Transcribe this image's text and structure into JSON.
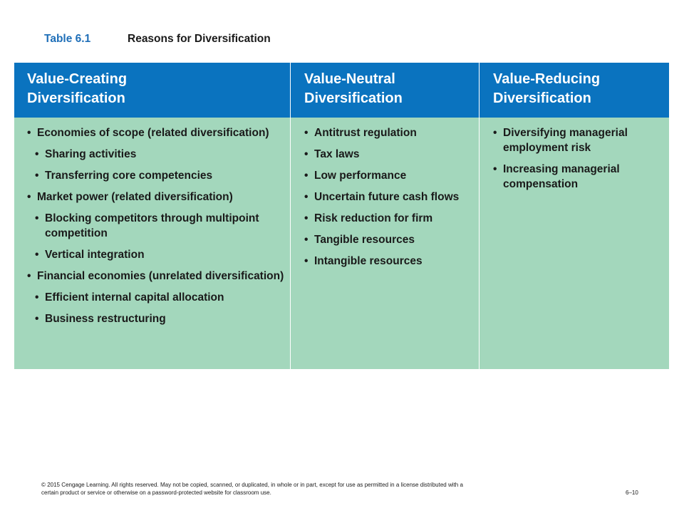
{
  "caption": {
    "number": "Table 6.1",
    "title": "Reasons for Diversification"
  },
  "columns": [
    {
      "heading": [
        "Value-Creating",
        "Diversification"
      ],
      "items": [
        {
          "text": "Economies of scope (related diversification)",
          "level": 1
        },
        {
          "text": "Sharing activities",
          "level": 2
        },
        {
          "text": "Transferring core competencies",
          "level": 2
        },
        {
          "text": "Market power (related diversification)",
          "level": 1
        },
        {
          "text": "Blocking competitors through multipoint competition",
          "level": 2
        },
        {
          "text": "Vertical integration",
          "level": 2
        },
        {
          "text": "Financial economies (unrelated diversification)",
          "level": 1
        },
        {
          "text": "Efficient internal capital allocation",
          "level": 2
        },
        {
          "text": "Business restructuring",
          "level": 2
        }
      ]
    },
    {
      "heading": [
        "Value-Neutral",
        "Diversification"
      ],
      "items": [
        {
          "text": "Antitrust regulation",
          "level": 1
        },
        {
          "text": "Tax laws",
          "level": 1
        },
        {
          "text": "Low performance",
          "level": 1
        },
        {
          "text": "Uncertain future cash flows",
          "level": 1
        },
        {
          "text": "Risk reduction for firm",
          "level": 1
        },
        {
          "text": "Tangible resources",
          "level": 1
        },
        {
          "text": "Intangible resources",
          "level": 1
        }
      ]
    },
    {
      "heading": [
        "Value-Reducing",
        "Diversification"
      ],
      "items": [
        {
          "text": "Diversifying managerial employment risk",
          "level": 1
        },
        {
          "text": "Increasing managerial compensation",
          "level": 1
        }
      ]
    }
  ],
  "footer": {
    "copyright": "© 2015 Cengage Learning. All rights reserved. May not be copied, scanned, or duplicated, in whole or in part, except for use as permitted in a license distributed with a certain product or service or otherwise on a password-protected website for classroom use.",
    "page": "6–10"
  },
  "colors": {
    "header_bg": "#0a73bf",
    "body_bg": "#a3d7bc",
    "caption_number": "#1f6fb8"
  }
}
